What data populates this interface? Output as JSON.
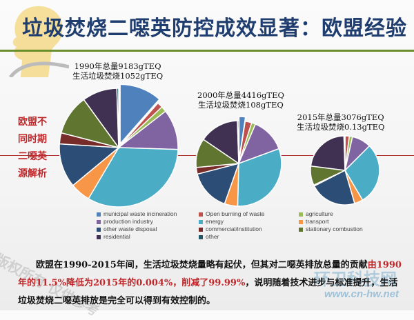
{
  "title": "垃圾焚烧二噁英防控成效显著：欧盟经验",
  "side_label": [
    "欧盟不",
    "同时期",
    "二噁英",
    "源解析"
  ],
  "chart_data": [
    {
      "type": "pie",
      "title_lines": [
        "1990年总量9183gTEQ",
        "生活垃圾焚烧1052gTEQ"
      ],
      "categories": [
        "municipal waste incineration",
        "Open burning of waste",
        "agriculture",
        "production industry",
        "energy",
        "transport",
        "other waste disposal",
        "commercial/institution",
        "stationary combustion",
        "residential",
        "other"
      ],
      "values": [
        11.5,
        1.5,
        1.5,
        11,
        33,
        5.5,
        12,
        3,
        11,
        9.5,
        0.5
      ],
      "exploded": "municipal waste incineration"
    },
    {
      "type": "pie",
      "title_lines": [
        "2000年总量4416gTEQ",
        "生活垃圾焚烧108gTEQ"
      ],
      "categories": [
        "municipal waste incineration",
        "Open burning of waste",
        "agriculture",
        "production industry",
        "energy",
        "transport",
        "other waste disposal",
        "commercial/institution",
        "stationary combustion",
        "residential",
        "other"
      ],
      "values": [
        2.4,
        2.5,
        1.5,
        13,
        31,
        5,
        15.6,
        2.5,
        11,
        15,
        0.5
      ],
      "exploded": "municipal waste incineration"
    },
    {
      "type": "pie",
      "title_lines": [
        "2015年总量3076gTEQ",
        "生活垃圾焚烧0.13gTEQ"
      ],
      "categories": [
        "municipal waste incineration",
        "Open burning of waste",
        "agriculture",
        "production industry",
        "energy",
        "transport",
        "other waste disposal",
        "commercial/institution",
        "stationary combustion",
        "residential",
        "other"
      ],
      "values": [
        0.004,
        2,
        1.5,
        9,
        29,
        4,
        22,
        0.5,
        9,
        22.5,
        0.5
      ]
    }
  ],
  "legend": [
    {
      "label": "municipal waste incineration",
      "color": "#4f81bd"
    },
    {
      "label": "Open burning of waste",
      "color": "#c0504d"
    },
    {
      "label": "agriculture",
      "color": "#9bbb59"
    },
    {
      "label": "production industry",
      "color": "#8064a2"
    },
    {
      "label": "energy",
      "color": "#4bacc6"
    },
    {
      "label": "transport",
      "color": "#f79646"
    },
    {
      "label": "other waste disposal",
      "color": "#2c4d75"
    },
    {
      "label": "commercial/institution",
      "color": "#772c2a"
    },
    {
      "label": "stationary combustion",
      "color": "#5f7530"
    },
    {
      "label": "residential",
      "color": "#403152"
    },
    {
      "label": "other",
      "color": "#215968"
    }
  ],
  "paragraph": {
    "part1": "欧盟在1990-2015年间，生活垃圾焚烧量略有起伏，但其对二噁英排放总量的贡献",
    "highlight": "由1990年的11.5%降低为2015年的0.004%，削减了99.99%",
    "part2": "，说明随着技术进步与标准提升，生活垃圾焚烧二噁英排放是完全可以得到有效控制的。"
  },
  "watermarks": {
    "left": "版权所有 仅供参考",
    "right_cn": "环卫科技网",
    "right_url": "www.cn-hw.net"
  },
  "colors": {
    "title": "#1f3d6e",
    "accent_red": "#c0282b",
    "rule_green": "#6a8f2a"
  }
}
